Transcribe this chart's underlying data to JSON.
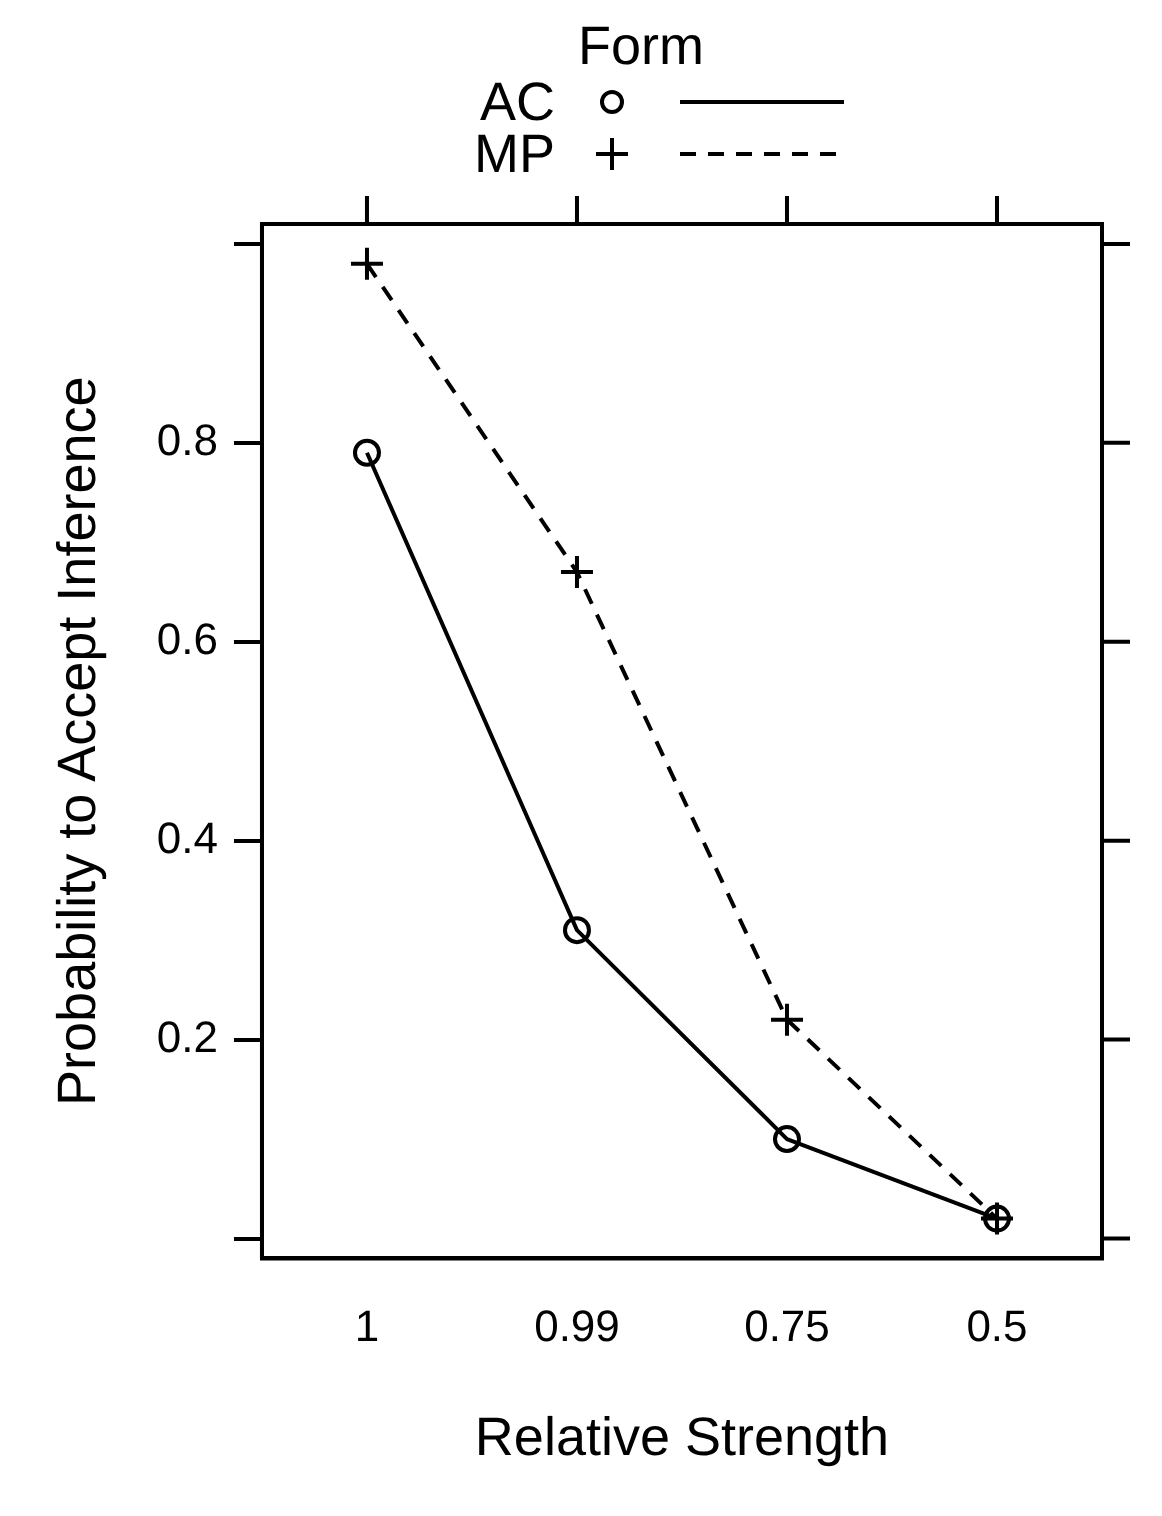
{
  "chart_data": {
    "type": "line",
    "xlabel": "Relative Strength",
    "ylabel": "Probability to Accept Inference",
    "legend_title": "Form",
    "categories": [
      "1",
      "0.99",
      "0.75",
      "0.5"
    ],
    "series": [
      {
        "name": "AC",
        "color": "#000000",
        "marker": "circle",
        "line_style": "solid",
        "values": [
          0.79,
          0.31,
          0.1,
          0.02
        ]
      },
      {
        "name": "MP",
        "color": "#000000",
        "marker": "cross",
        "line_style": "dashed",
        "values": [
          0.98,
          0.67,
          0.22,
          0.02
        ]
      }
    ],
    "ylim": [
      -0.02,
      1.02
    ],
    "yticks": [
      {
        "value": 0,
        "label": null
      },
      0.2,
      0.4,
      0.6,
      0.8,
      {
        "value": 1,
        "label": null
      }
    ],
    "grid": false,
    "legend": "top"
  }
}
